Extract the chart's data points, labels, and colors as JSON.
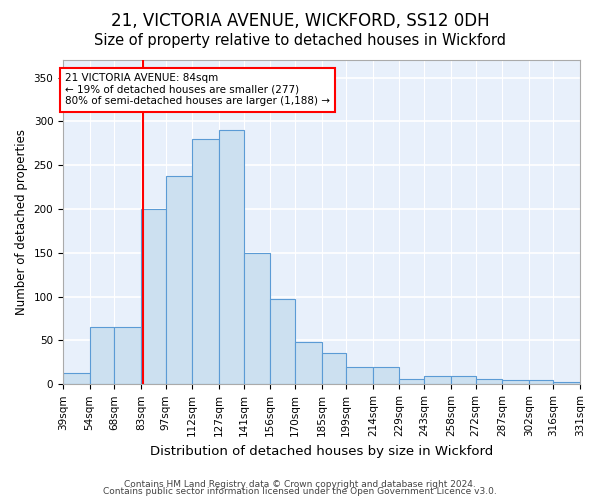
{
  "title1": "21, VICTORIA AVENUE, WICKFORD, SS12 0DH",
  "title2": "Size of property relative to detached houses in Wickford",
  "xlabel": "Distribution of detached houses by size in Wickford",
  "ylabel": "Number of detached properties",
  "footnote1": "Contains HM Land Registry data © Crown copyright and database right 2024.",
  "footnote2": "Contains public sector information licensed under the Open Government Licence v3.0.",
  "annotation_line1": "21 VICTORIA AVENUE: 84sqm",
  "annotation_line2": "← 19% of detached houses are smaller (277)",
  "annotation_line3": "80% of semi-detached houses are larger (1,188) →",
  "bar_color": "#cce0f0",
  "bar_edge_color": "#5b9bd5",
  "redline_x": 84,
  "bin_edges": [
    39,
    54,
    68,
    83,
    97,
    112,
    127,
    141,
    156,
    170,
    185,
    199,
    214,
    229,
    243,
    258,
    272,
    287,
    302,
    316,
    331
  ],
  "values": [
    13,
    65,
    65,
    200,
    238,
    280,
    290,
    150,
    97,
    48,
    36,
    20,
    20,
    6,
    9,
    9,
    6,
    5,
    5,
    3
  ],
  "tick_labels": [
    "39sqm",
    "54sqm",
    "68sqm",
    "83sqm",
    "97sqm",
    "112sqm",
    "127sqm",
    "141sqm",
    "156sqm",
    "170sqm",
    "185sqm",
    "199sqm",
    "214sqm",
    "229sqm",
    "243sqm",
    "258sqm",
    "272sqm",
    "287sqm",
    "302sqm",
    "316sqm",
    "331sqm"
  ],
  "ylim": [
    0,
    370
  ],
  "yticks": [
    0,
    50,
    100,
    150,
    200,
    250,
    300,
    350
  ],
  "bg_color": "#e8f0fb",
  "grid_color": "#ffffff",
  "title1_fontsize": 12,
  "title2_fontsize": 10.5,
  "xlabel_fontsize": 9.5,
  "ylabel_fontsize": 8.5,
  "tick_fontsize": 7.5,
  "footnote_fontsize": 6.5
}
